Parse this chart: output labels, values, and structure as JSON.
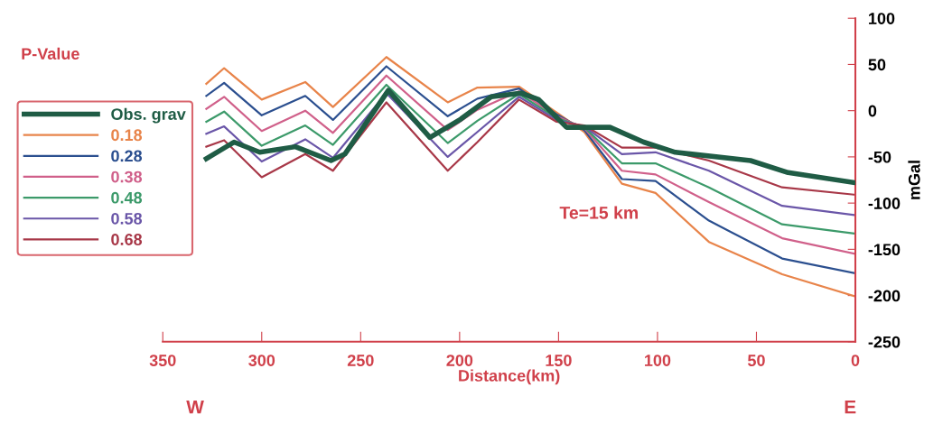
{
  "chart_data": {
    "type": "line",
    "xlabel": "Distance(km)",
    "ylabel": "mGal",
    "legend_title": "P-Value",
    "annotations": [
      "Te=15 km",
      "W",
      "E"
    ],
    "xlim": [
      350,
      0
    ],
    "xticks": [
      350,
      300,
      250,
      200,
      150,
      100,
      50,
      0
    ],
    "ylim": [
      -250,
      100
    ],
    "yticks": [
      100,
      50,
      0,
      -50,
      -100,
      -150,
      -200,
      -250
    ],
    "grid": false,
    "legend": "left",
    "marker": "none",
    "line_style": "solid",
    "series": [
      {
        "name": "Obs. grav",
        "color": "#1f5c45",
        "x": [
          328,
          314,
          301,
          283,
          265,
          258,
          236,
          215,
          200,
          184,
          169,
          160,
          146,
          137,
          124,
          107,
          91,
          53,
          34,
          0
        ],
        "values": [
          -52,
          -34,
          -45,
          -39,
          -54,
          -47,
          22,
          -29,
          -10,
          15,
          19,
          12,
          -18,
          -18,
          -18,
          -34,
          -45,
          -54,
          -67,
          -78
        ]
      },
      {
        "name": "0.18",
        "color": "#e8844a",
        "x": [
          328,
          319,
          300,
          278,
          264,
          237,
          206,
          191,
          170,
          151,
          137,
          118,
          101,
          74,
          37,
          0
        ],
        "values": [
          29,
          46,
          12,
          31,
          4,
          58,
          9,
          25,
          26,
          -2,
          -23,
          -79,
          -89,
          -142,
          -177,
          -201
        ]
      },
      {
        "name": "0.28",
        "color": "#2b4f8f",
        "x": [
          328,
          319,
          300,
          278,
          264,
          237,
          206,
          191,
          170,
          151,
          137,
          118,
          101,
          74,
          37,
          0
        ],
        "values": [
          16,
          30,
          -5,
          16,
          -10,
          48,
          -6,
          13,
          24,
          -4,
          -21,
          -74,
          -76,
          -119,
          -160,
          -176
        ]
      },
      {
        "name": "0.38",
        "color": "#d0608a",
        "x": [
          328,
          319,
          300,
          278,
          264,
          237,
          206,
          191,
          170,
          151,
          137,
          118,
          101,
          74,
          37,
          0
        ],
        "values": [
          2,
          15,
          -22,
          0,
          -24,
          38,
          -21,
          1,
          21,
          -6,
          -19,
          -65,
          -69,
          -99,
          -138,
          -155
        ]
      },
      {
        "name": "0.48",
        "color": "#3c9a6a",
        "x": [
          328,
          319,
          300,
          278,
          264,
          237,
          206,
          191,
          170,
          151,
          137,
          118,
          101,
          74,
          37,
          0
        ],
        "values": [
          -12,
          -1,
          -38,
          -16,
          -37,
          28,
          -35,
          -11,
          18,
          -8,
          -18,
          -57,
          -57,
          -83,
          -123,
          -133
        ]
      },
      {
        "name": "0.58",
        "color": "#6a56a8",
        "x": [
          328,
          319,
          300,
          278,
          264,
          237,
          206,
          191,
          170,
          151,
          137,
          118,
          101,
          74,
          37,
          0
        ],
        "values": [
          -25,
          -17,
          -55,
          -31,
          -51,
          19,
          -50,
          -23,
          15,
          -10,
          -17,
          -47,
          -45,
          -65,
          -103,
          -113
        ]
      },
      {
        "name": "0.68",
        "color": "#a83848",
        "x": [
          328,
          319,
          300,
          278,
          264,
          237,
          206,
          191,
          170,
          151,
          137,
          118,
          101,
          74,
          37,
          0
        ],
        "values": [
          -39,
          -32,
          -72,
          -47,
          -65,
          9,
          -65,
          -34,
          12,
          -12,
          -16,
          -40,
          -40,
          -54,
          -83,
          -91
        ]
      }
    ]
  }
}
